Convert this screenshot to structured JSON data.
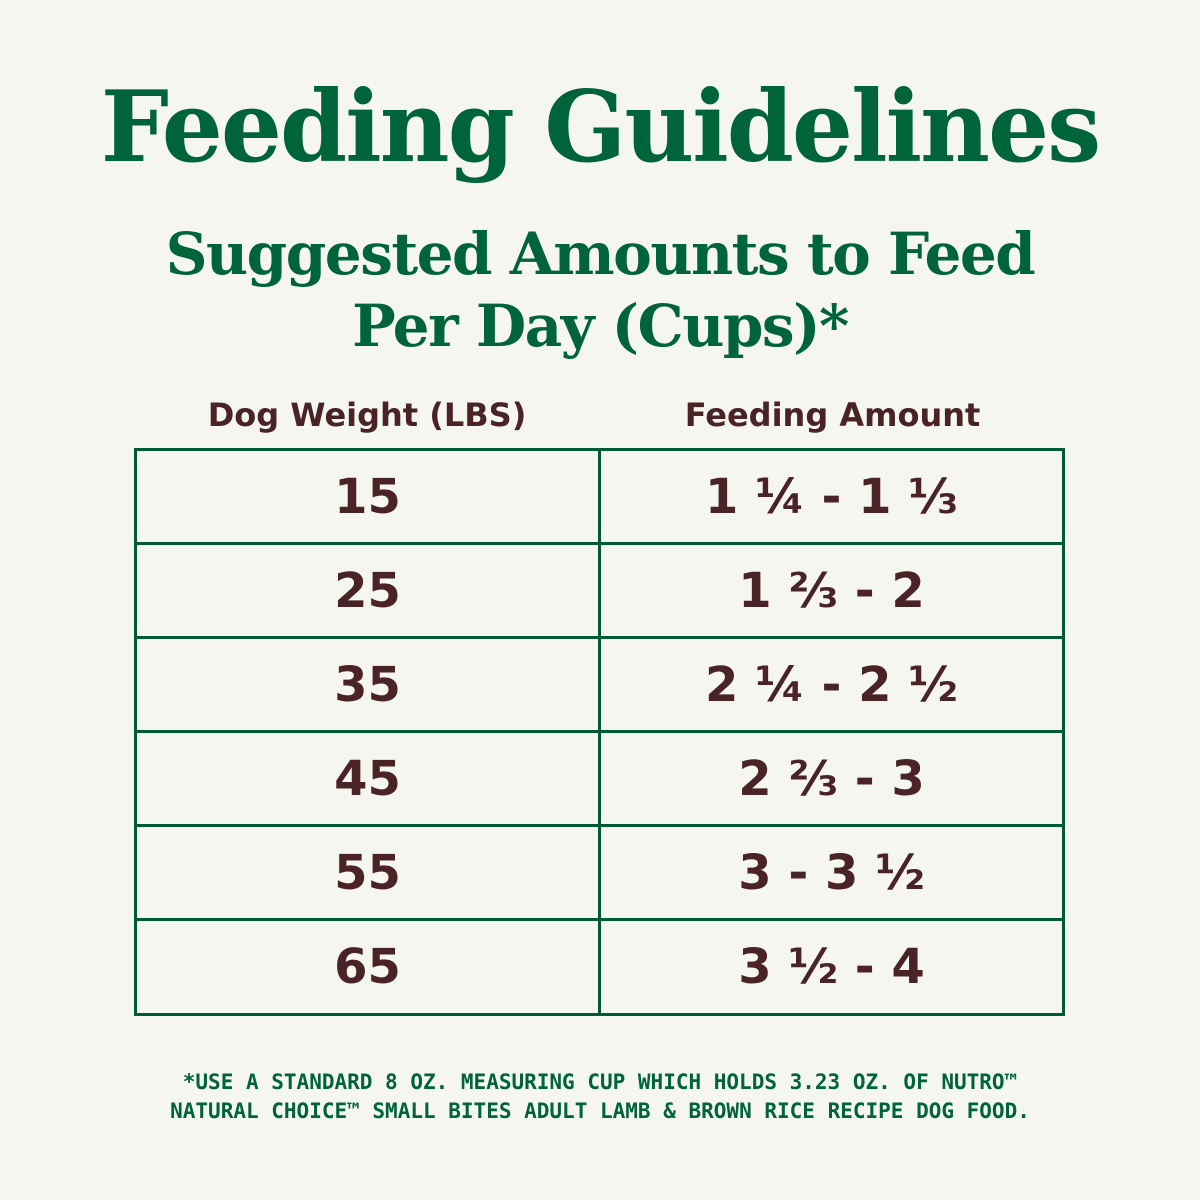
{
  "header": {
    "title": "Feeding Guidelines",
    "subtitle_line1": "Suggested Amounts to Feed",
    "subtitle_line2": "Per Day (Cups)*"
  },
  "table": {
    "columns": [
      "Dog Weight (LBS)",
      "Feeding Amount"
    ],
    "rows": [
      {
        "weight": "15",
        "amount": "1 ¼ - 1 ⅓"
      },
      {
        "weight": "25",
        "amount": "1 ⅔ - 2"
      },
      {
        "weight": "35",
        "amount": "2 ¼ - 2 ½"
      },
      {
        "weight": "45",
        "amount": "2 ⅔ - 3"
      },
      {
        "weight": "55",
        "amount": "3 - 3 ½"
      },
      {
        "weight": "65",
        "amount": "3 ½ - 4"
      }
    ]
  },
  "footnote": {
    "line1": "*USE A STANDARD 8 OZ. MEASURING CUP WHICH HOLDS 3.23 OZ. OF NUTRO™",
    "line2": "NATURAL CHOICE™ SMALL BITES ADULT LAMB & BROWN RICE RECIPE DOG FOOD."
  },
  "colors": {
    "background": "#f6f6f1",
    "heading_green": "#00643a",
    "border_green": "#005a34",
    "text_brown": "#4a2326"
  }
}
